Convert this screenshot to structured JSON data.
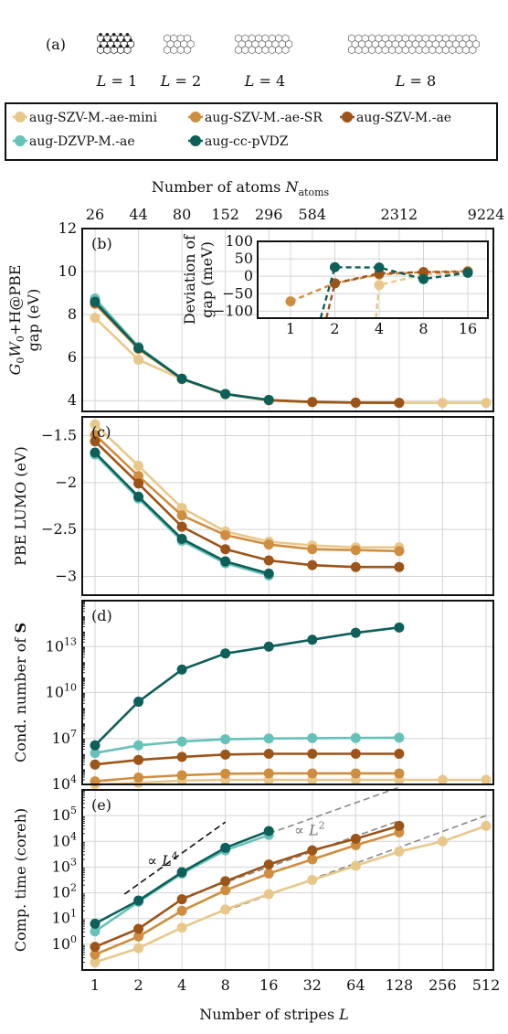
{
  "header": {
    "panel_label": "(a)",
    "structures": [
      {
        "label": "L = 1",
        "stripes": 1
      },
      {
        "label": "L = 2",
        "stripes": 2
      },
      {
        "label": "L = 4",
        "stripes": 4
      },
      {
        "label": "L = 8",
        "stripes": 8
      }
    ]
  },
  "legend": {
    "entries": [
      {
        "name": "aug-SZV-M.-ae-mini",
        "color": "#e8c88a"
      },
      {
        "name": "aug-SZV-M.-ae-SR",
        "color": "#cf8e3f"
      },
      {
        "name": "aug-SZV-M.-ae",
        "color": "#9c5418"
      },
      {
        "name": "aug-DZVP-M.-ae",
        "color": "#66c2b8"
      },
      {
        "name": "aug-cc-pVDZ",
        "color": "#0d5f59"
      }
    ]
  },
  "top_axis": {
    "label_main": "Number of atoms N",
    "label_sub": "atoms",
    "ticks": [
      {
        "label": "26",
        "L": 1
      },
      {
        "label": "44",
        "L": 2
      },
      {
        "label": "80",
        "L": 4
      },
      {
        "label": "152",
        "L": 8
      },
      {
        "label": "296",
        "L": 16
      },
      {
        "label": "584",
        "L": 32
      },
      {
        "label": "2312",
        "L": 128
      },
      {
        "label": "9224",
        "L": 512
      }
    ]
  },
  "x_axis": {
    "label": "Number of stripes L",
    "scale": "log2",
    "range": [
      1,
      512
    ],
    "ticks": [
      {
        "v": 1,
        "label": "1"
      },
      {
        "v": 2,
        "label": "2"
      },
      {
        "v": 4,
        "label": "4"
      },
      {
        "v": 8,
        "label": "8"
      },
      {
        "v": 16,
        "label": "16"
      },
      {
        "v": 32,
        "label": "32"
      },
      {
        "v": 64,
        "label": "64"
      },
      {
        "v": 128,
        "label": "128"
      },
      {
        "v": 256,
        "label": "256"
      },
      {
        "v": 512,
        "label": "512"
      }
    ]
  },
  "chart_data": [
    {
      "type": "line",
      "panel": "(b)",
      "ylabel_line1": "G0W0+H@PBE",
      "ylabel_line2": "gap (eV)",
      "ylim": [
        3.5,
        12
      ],
      "yticks": [
        {
          "v": 4,
          "label": "4"
        },
        {
          "v": 6,
          "label": "6"
        },
        {
          "v": 8,
          "label": "8"
        },
        {
          "v": 10,
          "label": "10"
        },
        {
          "v": 12,
          "label": "12"
        }
      ],
      "series": [
        {
          "name": "aug-SZV-M.-ae-mini",
          "x": [
            1,
            2,
            4,
            8,
            16,
            32,
            64,
            128,
            256,
            512
          ],
          "y": [
            7.85,
            5.9,
            5.0,
            4.3,
            4.0,
            3.93,
            3.9,
            3.9,
            3.9,
            3.9
          ]
        },
        {
          "name": "aug-SZV-M.-ae-SR",
          "x": [
            1,
            2,
            4,
            8,
            16,
            32,
            64,
            128
          ],
          "y": [
            8.5,
            6.4,
            5.0,
            4.3,
            4.02,
            3.93,
            3.91,
            3.9
          ]
        },
        {
          "name": "aug-SZV-M.-ae",
          "x": [
            1,
            2,
            4,
            8,
            16,
            32,
            64,
            128
          ],
          "y": [
            8.55,
            6.45,
            5.02,
            4.31,
            4.03,
            3.94,
            3.91,
            3.9
          ]
        },
        {
          "name": "aug-DZVP-M.-ae",
          "x": [
            1,
            2,
            4,
            8,
            16
          ],
          "y": [
            8.75,
            6.5,
            5.02,
            4.31,
            4.03
          ]
        },
        {
          "name": "aug-cc-pVDZ",
          "x": [
            1,
            2,
            4,
            8,
            16
          ],
          "y": [
            8.6,
            6.45,
            5.02,
            4.31,
            4.03
          ]
        }
      ],
      "inset": {
        "ylabel_line1": "Deviation of",
        "ylabel_line2": "gap (meV)",
        "ylim": [
          -120,
          100
        ],
        "yticks": [
          {
            "v": 100,
            "label": "100"
          },
          {
            "v": 50,
            "label": "50"
          },
          {
            "v": 0,
            "label": "0"
          },
          {
            "v": -50,
            "label": "−50"
          },
          {
            "v": -100,
            "label": "−100"
          }
        ],
        "xticks": [
          {
            "v": 1,
            "label": "1"
          },
          {
            "v": 2,
            "label": "2"
          },
          {
            "v": 4,
            "label": "4"
          },
          {
            "v": 8,
            "label": "8"
          },
          {
            "v": 16,
            "label": "16"
          }
        ],
        "series": [
          {
            "name": "aug-SZV-M.-ae-mini",
            "x": [
              4,
              8,
              16
            ],
            "y": [
              -25,
              5,
              10
            ],
            "from_below": 3.8
          },
          {
            "name": "aug-SZV-M.-ae-SR",
            "x": [
              1,
              2,
              4,
              8,
              16
            ],
            "y": [
              -72,
              -20,
              5,
              12,
              15
            ]
          },
          {
            "name": "aug-SZV-M.-ae",
            "x": [
              2,
              4,
              8,
              16
            ],
            "y": [
              -20,
              8,
              12,
              12
            ],
            "from_below": 1.75
          },
          {
            "name": "aug-cc-pVDZ",
            "x": [
              2,
              4,
              8,
              16
            ],
            "y": [
              26,
              25,
              -8,
              10
            ],
            "from_below": 1.6
          }
        ]
      }
    },
    {
      "type": "line",
      "panel": "(c)",
      "ylabel": "PBE LUMO (eV)",
      "ylim": [
        -3.2,
        -1.3
      ],
      "yticks": [
        {
          "v": -1.5,
          "label": "−1.5"
        },
        {
          "v": -2,
          "label": "−2"
        },
        {
          "v": -2.5,
          "label": "−2.5"
        },
        {
          "v": -3,
          "label": "−3"
        }
      ],
      "series": [
        {
          "name": "aug-SZV-M.-ae-mini",
          "x": [
            1,
            2,
            4,
            8,
            16,
            32,
            64,
            128
          ],
          "y": [
            -1.38,
            -1.82,
            -2.27,
            -2.52,
            -2.63,
            -2.67,
            -2.69,
            -2.69
          ]
        },
        {
          "name": "aug-SZV-M.-ae-SR",
          "x": [
            1,
            2,
            4,
            8,
            16,
            32,
            64,
            128
          ],
          "y": [
            -1.49,
            -1.93,
            -2.35,
            -2.56,
            -2.66,
            -2.71,
            -2.72,
            -2.73
          ]
        },
        {
          "name": "aug-SZV-M.-ae",
          "x": [
            1,
            2,
            4,
            8,
            16,
            32,
            64,
            128
          ],
          "y": [
            -1.56,
            -2.01,
            -2.47,
            -2.71,
            -2.83,
            -2.88,
            -2.9,
            -2.9
          ]
        },
        {
          "name": "aug-DZVP-M.-ae",
          "x": [
            1,
            2,
            4,
            8,
            16
          ],
          "y": [
            -1.7,
            -2.17,
            -2.62,
            -2.86,
            -2.99
          ]
        },
        {
          "name": "aug-cc-pVDZ",
          "x": [
            1,
            2,
            4,
            8,
            16
          ],
          "y": [
            -1.68,
            -2.15,
            -2.6,
            -2.84,
            -2.97
          ]
        }
      ]
    },
    {
      "type": "line",
      "panel": "(d)",
      "ylabel": "Cond. number of S",
      "yscale": "log10",
      "ylim": [
        4,
        16
      ],
      "yticks": [
        {
          "v": 4,
          "label": "10^4"
        },
        {
          "v": 7,
          "label": "10^7"
        },
        {
          "v": 10,
          "label": "10^10"
        },
        {
          "v": 13,
          "label": "10^13"
        }
      ],
      "series": [
        {
          "name": "aug-SZV-M.-ae-mini",
          "x": [
            1,
            2,
            4,
            8,
            16,
            32,
            64,
            128,
            256,
            512
          ],
          "y": [
            4.0,
            4.1,
            4.25,
            4.3,
            4.3,
            4.3,
            4.3,
            4.3,
            4.3,
            4.3
          ]
        },
        {
          "name": "aug-SZV-M.-ae-SR",
          "x": [
            1,
            2,
            4,
            8,
            16,
            32,
            64,
            128
          ],
          "y": [
            4.2,
            4.45,
            4.6,
            4.7,
            4.72,
            4.72,
            4.72,
            4.72
          ]
        },
        {
          "name": "aug-SZV-M.-ae",
          "x": [
            1,
            2,
            4,
            8,
            16,
            32,
            64,
            128
          ],
          "y": [
            5.3,
            5.6,
            5.8,
            5.95,
            6.0,
            6.0,
            6.0,
            6.0
          ]
        },
        {
          "name": "aug-DZVP-M.-ae",
          "x": [
            1,
            2,
            4,
            8,
            16,
            32,
            64,
            128
          ],
          "y": [
            6.05,
            6.55,
            6.8,
            6.95,
            7.0,
            7.02,
            7.03,
            7.05
          ]
        },
        {
          "name": "aug-cc-pVDZ",
          "x": [
            1,
            2,
            4,
            8,
            16,
            32,
            64,
            128
          ],
          "y": [
            6.55,
            9.4,
            11.5,
            12.55,
            13.0,
            13.45,
            13.9,
            14.25
          ]
        }
      ]
    },
    {
      "type": "line",
      "panel": "(e)",
      "ylabel": "Comp. time (coreh)",
      "yscale": "log10",
      "ylim": [
        -1.0,
        6.0
      ],
      "yticks": [
        {
          "v": 0,
          "label": "10^0"
        },
        {
          "v": 1,
          "label": "10^1"
        },
        {
          "v": 2,
          "label": "10^2"
        },
        {
          "v": 3,
          "label": "10^3"
        },
        {
          "v": 4,
          "label": "10^4"
        },
        {
          "v": 5,
          "label": "10^5"
        }
      ],
      "annotations": [
        {
          "text": "∝ L",
          "sup": "4",
          "x": 2.3,
          "y": 3.05
        },
        {
          "text": "∝ L",
          "sup": "2",
          "x": 24,
          "y": 4.25
        }
      ],
      "guides": [
        {
          "kind": "L4",
          "color": "#111111",
          "x": [
            1.6,
            8
          ],
          "y": [
            1.95,
            4.75
          ]
        },
        {
          "kind": "L2",
          "color": "#888888",
          "x": [
            4,
            128
          ],
          "y": [
            1.8,
            4.8
          ]
        },
        {
          "kind": "L2",
          "color": "#888888",
          "x": [
            16,
            128
          ],
          "y": [
            4.3,
            6.1
          ]
        },
        {
          "kind": "L2",
          "color": "#888888",
          "x": [
            8,
            512
          ],
          "y": [
            1.3,
            5.0
          ]
        }
      ],
      "series": [
        {
          "name": "aug-SZV-M.-ae-mini",
          "x": [
            1,
            2,
            4,
            8,
            16,
            32,
            64,
            128,
            256,
            512
          ],
          "y": [
            -0.7,
            -0.15,
            0.65,
            1.35,
            1.95,
            2.5,
            3.05,
            3.6,
            4.0,
            4.6
          ]
        },
        {
          "name": "aug-SZV-M.-ae-SR",
          "x": [
            1,
            2,
            4,
            8,
            16,
            32,
            64,
            128
          ],
          "y": [
            -0.4,
            0.3,
            1.3,
            2.1,
            2.75,
            3.3,
            3.85,
            4.35
          ]
        },
        {
          "name": "aug-SZV-M.-ae",
          "x": [
            1,
            2,
            4,
            8,
            16,
            32,
            64,
            128
          ],
          "y": [
            -0.1,
            0.6,
            1.75,
            2.45,
            3.1,
            3.65,
            4.1,
            4.6
          ]
        },
        {
          "name": "aug-DZVP-M.-ae",
          "x": [
            1,
            2,
            4,
            8,
            16
          ],
          "y": [
            0.5,
            1.65,
            2.75,
            3.65,
            4.25
          ]
        },
        {
          "name": "aug-cc-pVDZ",
          "x": [
            1,
            2,
            4,
            8,
            16
          ],
          "y": [
            0.8,
            1.7,
            2.8,
            3.75,
            4.4
          ]
        }
      ]
    }
  ]
}
